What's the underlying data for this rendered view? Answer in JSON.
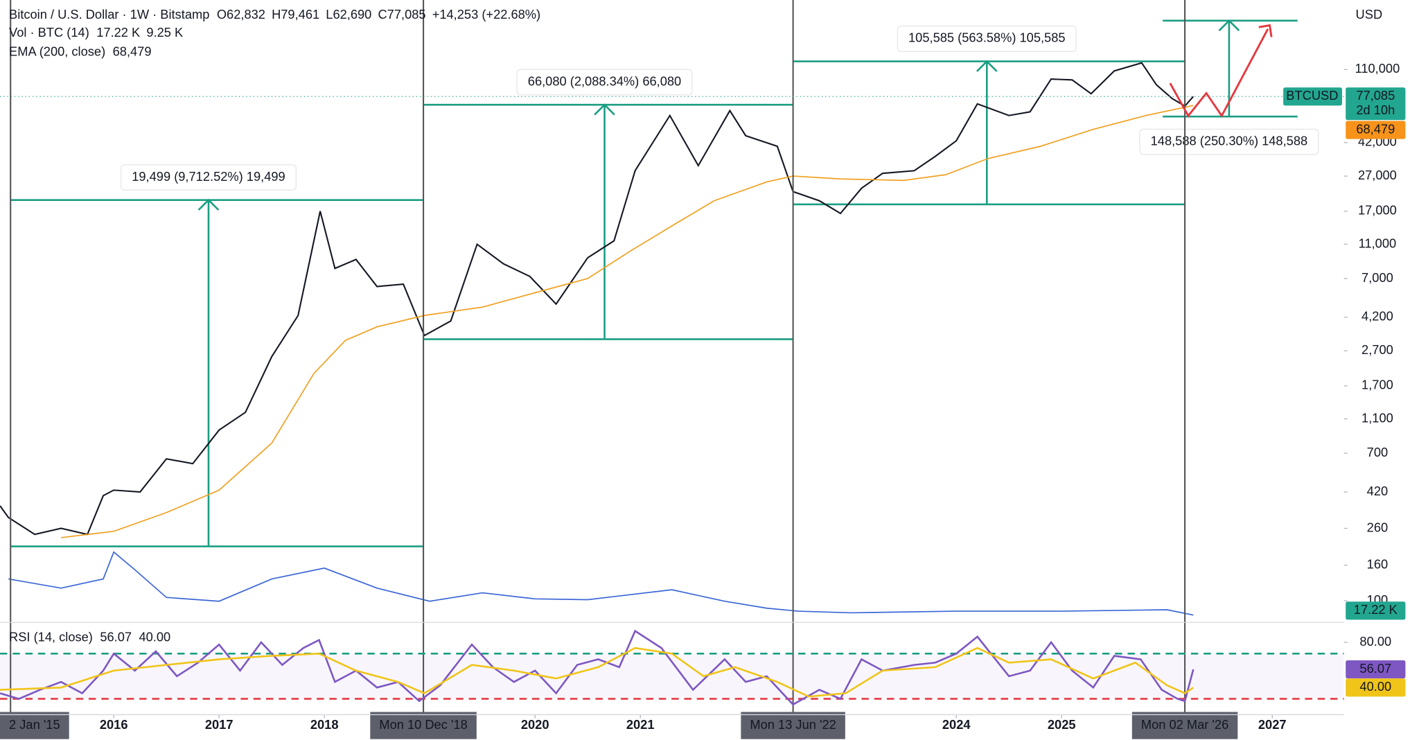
{
  "header": {
    "title": "Bitcoin / U.S. Dollar · 1W · Bitstamp",
    "ohlc": [
      "O62,832",
      "H79,461",
      "L62,690",
      "C77,085",
      "+14,253 (+22.68%)"
    ],
    "ohlc_color": "#089981",
    "indicators": [
      {
        "name": "Vol · BTC (14)",
        "values": [
          "17.22 K",
          "9.25 K"
        ],
        "colors": [
          "#26a69a",
          "#2962ff"
        ]
      },
      {
        "name": "EMA (200, close)",
        "values": [
          "68,479"
        ],
        "colors": [
          "#f0a020"
        ]
      }
    ],
    "currency": "USD",
    "symbol_tag": "BTCUSD",
    "countdown": "2d 10h",
    "volume_tag": "17.22 K"
  },
  "chart_data": [
    {
      "type": "line",
      "log_scale": true,
      "grid": false,
      "xlim": [
        2014.92,
        2027.68
      ],
      "ylim": [
        78,
        275000
      ],
      "xticks": [
        2016,
        2017,
        2018,
        2020,
        2021,
        2024,
        2025,
        2027
      ],
      "yticks": [
        {
          "value": 110000,
          "label": "110,000"
        },
        {
          "value": 42000,
          "label": "42,000"
        },
        {
          "value": 27000,
          "label": "27,000"
        },
        {
          "value": 17000,
          "label": "17,000"
        },
        {
          "value": 11000,
          "label": "11,000"
        },
        {
          "value": 7000,
          "label": "7,000"
        },
        {
          "value": 4200,
          "label": "4,200"
        },
        {
          "value": 2700,
          "label": "2,700"
        },
        {
          "value": 1700,
          "label": "1,700"
        },
        {
          "value": 1100,
          "label": "1,100"
        },
        700,
        420,
        260,
        160,
        100
      ],
      "series": [
        {
          "name": "BTCUSD",
          "color": "#131722",
          "x": [
            2014.92,
            2015.0,
            2015.25,
            2015.5,
            2015.75,
            2015.9,
            2016.0,
            2016.25,
            2016.5,
            2016.75,
            2017.0,
            2017.25,
            2017.5,
            2017.75,
            2017.96,
            2018.1,
            2018.3,
            2018.5,
            2018.75,
            2018.95,
            2019.2,
            2019.45,
            2019.7,
            2019.95,
            2020.2,
            2020.5,
            2020.75,
            2020.95,
            2021.28,
            2021.55,
            2021.85,
            2022.0,
            2022.3,
            2022.45,
            2022.7,
            2022.9,
            2023.1,
            2023.3,
            2023.6,
            2023.8,
            2024.0,
            2024.2,
            2024.5,
            2024.7,
            2024.9,
            2025.1,
            2025.28,
            2025.5,
            2025.76,
            2025.9,
            2026.05,
            2026.17,
            2026.25
          ],
          "values": [
            350,
            300,
            240,
            260,
            240,
            400,
            430,
            420,
            650,
            610,
            950,
            1200,
            2500,
            4300,
            17000,
            8000,
            9000,
            6300,
            6500,
            3300,
            4000,
            11000,
            8500,
            7200,
            5000,
            9200,
            11500,
            29000,
            60000,
            31000,
            64000,
            46000,
            40000,
            22000,
            19500,
            16500,
            23000,
            28000,
            29000,
            35000,
            43000,
            70000,
            60000,
            63000,
            97000,
            96000,
            80000,
            108000,
            120000,
            90000,
            75000,
            68000,
            77085
          ]
        },
        {
          "name": "EMA (200, close)",
          "color": "#f0a020",
          "x": [
            2015.5,
            2016.0,
            2016.5,
            2017.0,
            2017.5,
            2017.9,
            2018.2,
            2018.5,
            2018.95,
            2019.5,
            2020.0,
            2020.5,
            2020.9,
            2021.3,
            2021.7,
            2022.2,
            2022.45,
            2022.9,
            2023.5,
            2023.9,
            2024.3,
            2024.8,
            2025.3,
            2025.8,
            2026.25
          ],
          "values": [
            230,
            250,
            320,
            430,
            800,
            2000,
            3100,
            3700,
            4300,
            4800,
            5800,
            7000,
            10000,
            14000,
            19500,
            25000,
            27000,
            26000,
            25500,
            27500,
            34000,
            40000,
            50000,
            60000,
            68479
          ]
        }
      ],
      "volume": {
        "name": "Vol · BTC (14)",
        "color": "#3a66d6",
        "ylim": [
          0,
          100
        ],
        "x": [
          2015.0,
          2015.5,
          2015.9,
          2016.0,
          2016.2,
          2016.5,
          2017.0,
          2017.5,
          2018.0,
          2018.5,
          2019.0,
          2019.5,
          2020.0,
          2020.5,
          2021.3,
          2021.8,
          2022.2,
          2022.5,
          2023.0,
          2024.0,
          2025.0,
          2026.0,
          2026.25
        ],
        "values": [
          53,
          41,
          53,
          88,
          65,
          29,
          24,
          53,
          67,
          41,
          24,
          35,
          27,
          26,
          39,
          24,
          15,
          11,
          9,
          11,
          11,
          13,
          6
        ]
      },
      "markers": [
        {
          "value": 2015.02,
          "label": "2 Jan '15"
        },
        {
          "value": 2018.94,
          "label": "Mon 10 Dec '18"
        },
        {
          "value": 2022.45,
          "label": "Mon 13 Jun '22"
        },
        {
          "value": 2026.17,
          "label": "Mon 02 Mar '26"
        }
      ],
      "measurements": [
        {
          "label": "19,499 (9,712.52%) 19,499",
          "x": [
            2015.02,
            2018.94
          ],
          "arrow_x": 2016.9,
          "low": 205,
          "high": 19700,
          "label_position": "above"
        },
        {
          "label": "66,080 (2,088.34%) 66,080",
          "x": [
            2018.94,
            2022.45
          ],
          "arrow_x": 2020.66,
          "low": 3145,
          "high": 69100,
          "label_position": "above"
        },
        {
          "label": "105,585 (563.58%) 105,585",
          "x": [
            2022.45,
            2026.17
          ],
          "arrow_x": 2024.29,
          "low": 18600,
          "high": 122500,
          "label_position": "above"
        },
        {
          "label": "148,588 (250.30%) 148,588",
          "x": [
            2025.96,
            2027.24
          ],
          "arrow_x": 2026.59,
          "low": 59200,
          "high": 209500,
          "label_position": "below"
        }
      ],
      "measure_color": "#1a9e82",
      "tags": [
        {
          "value": 77085,
          "label": "77,085",
          "color": "#22a68f"
        },
        {
          "value": 68479,
          "label": "68,479",
          "color": "#f7931a"
        }
      ]
    },
    {
      "type": "line",
      "title": "RSI (14, close)",
      "legend_values": [
        "56.07",
        "40.00"
      ],
      "xlim": [
        2014.92,
        2027.68
      ],
      "ylim": [
        16,
        96
      ],
      "yticks": [
        {
          "value": 80,
          "label": "80.00"
        }
      ],
      "bands": [
        70,
        30
      ],
      "band_colors": [
        "#1a9e82",
        "#e53945"
      ],
      "series": [
        {
          "name": "RSI",
          "color": "#7e57c2",
          "x": [
            2014.92,
            2015.1,
            2015.3,
            2015.5,
            2015.7,
            2015.9,
            2016.0,
            2016.2,
            2016.4,
            2016.6,
            2016.8,
            2017.0,
            2017.2,
            2017.4,
            2017.6,
            2017.8,
            2017.95,
            2018.1,
            2018.3,
            2018.5,
            2018.7,
            2018.9,
            2019.1,
            2019.4,
            2019.6,
            2019.8,
            2020.0,
            2020.2,
            2020.4,
            2020.6,
            2020.8,
            2020.95,
            2021.2,
            2021.5,
            2021.8,
            2022.0,
            2022.2,
            2022.45,
            2022.7,
            2022.9,
            2023.1,
            2023.3,
            2023.6,
            2023.8,
            2024.0,
            2024.2,
            2024.5,
            2024.7,
            2024.9,
            2025.1,
            2025.3,
            2025.5,
            2025.75,
            2025.95,
            2026.1,
            2026.17,
            2026.25
          ],
          "values": [
            35,
            30,
            38,
            45,
            35,
            55,
            70,
            55,
            72,
            50,
            62,
            78,
            55,
            80,
            60,
            75,
            82,
            45,
            55,
            40,
            45,
            28,
            42,
            78,
            58,
            45,
            55,
            35,
            60,
            65,
            58,
            90,
            75,
            38,
            65,
            45,
            50,
            25,
            38,
            30,
            65,
            55,
            60,
            62,
            70,
            85,
            50,
            55,
            80,
            55,
            40,
            68,
            65,
            38,
            30,
            28,
            56.07
          ]
        },
        {
          "name": "RSI MA",
          "color": "#f0c419",
          "x": [
            2014.92,
            2015.5,
            2016.0,
            2016.5,
            2017.0,
            2017.5,
            2017.95,
            2018.3,
            2018.7,
            2018.95,
            2019.4,
            2019.8,
            2020.2,
            2020.6,
            2020.95,
            2021.3,
            2021.6,
            2021.9,
            2022.3,
            2022.6,
            2022.95,
            2023.3,
            2023.8,
            2024.2,
            2024.5,
            2024.9,
            2025.3,
            2025.7,
            2026.0,
            2026.17,
            2026.25
          ],
          "values": [
            38,
            40,
            55,
            60,
            65,
            68,
            70,
            55,
            45,
            35,
            60,
            55,
            48,
            58,
            75,
            70,
            50,
            58,
            45,
            32,
            35,
            55,
            58,
            75,
            62,
            65,
            48,
            62,
            42,
            35,
            40
          ]
        }
      ],
      "tags": [
        {
          "value": 56.07,
          "label": "56.07",
          "color": "#7e57c2"
        },
        {
          "value": 40,
          "label": "40.00",
          "color": "#f0c419"
        }
      ]
    }
  ]
}
